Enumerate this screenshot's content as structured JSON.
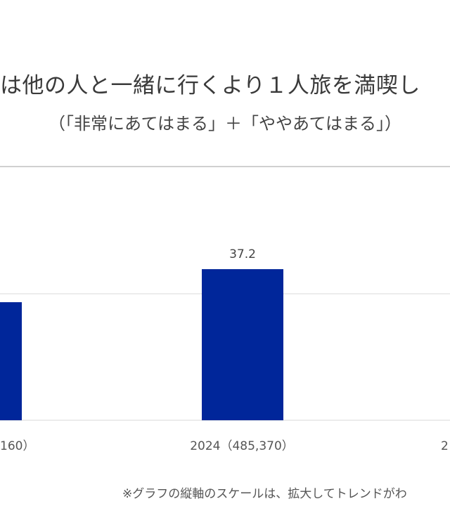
{
  "title": "は他の人と一緒に行くより１人旅を満喫し",
  "subtitle": "（「非常にあてはまる」＋「ややあてはまる」）",
  "footnote": "※グラフの縦軸のスケールは、拡大してトレンドがわ",
  "colors": {
    "bar": "#00269a",
    "gridline": "#d9d9d9"
  },
  "chart_data": {
    "type": "bar",
    "categories": [
      "160）",
      "2024（485,370）",
      "2"
    ],
    "values": [
      null,
      37.2,
      null
    ],
    "data_labels": [
      "",
      "37.2",
      ""
    ],
    "title": "は他の人と一緒に行くより１人旅を満喫し",
    "subtitle": "（「非常にあてはまる」＋「ややあてはまる」）",
    "xlabel": "",
    "ylabel": "",
    "grid": true,
    "legend": "none"
  }
}
